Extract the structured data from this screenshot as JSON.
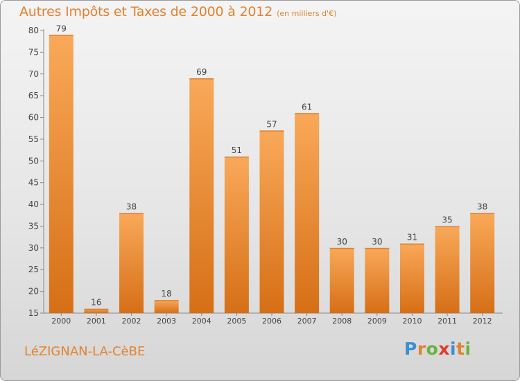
{
  "header": {
    "title": "Autres Impôts et Taxes de 2000 à 2012",
    "unit_note": "(en milliers d'€)"
  },
  "footer": {
    "commune": "LéZIGNAN-LA-CèBE",
    "logo_text": "Proxiti",
    "logo_colors": [
      "#3b8fd0",
      "#e3822e",
      "#6ab33e",
      "#e03b2f",
      "#3b8fd0",
      "#e3822e",
      "#6ab33e"
    ]
  },
  "chart_data": {
    "type": "bar",
    "title": "Autres Impôts et Taxes de 2000 à 2012",
    "subtitle": "(en milliers d'€)",
    "xlabel": "",
    "ylabel": "",
    "categories": [
      "2000",
      "2001",
      "2002",
      "2003",
      "2004",
      "2005",
      "2006",
      "2007",
      "2008",
      "2009",
      "2010",
      "2011",
      "2012"
    ],
    "values": [
      79,
      16,
      38,
      18,
      69,
      51,
      57,
      61,
      30,
      30,
      31,
      35,
      38
    ],
    "ylim": [
      15,
      80
    ],
    "yticks": [
      15,
      20,
      25,
      30,
      35,
      40,
      45,
      50,
      55,
      60,
      65,
      70,
      75,
      80
    ],
    "grid": false,
    "bar_color_light": "#f9a959",
    "bar_color_dark": "#d66f16",
    "text_color": "#e3822e"
  }
}
